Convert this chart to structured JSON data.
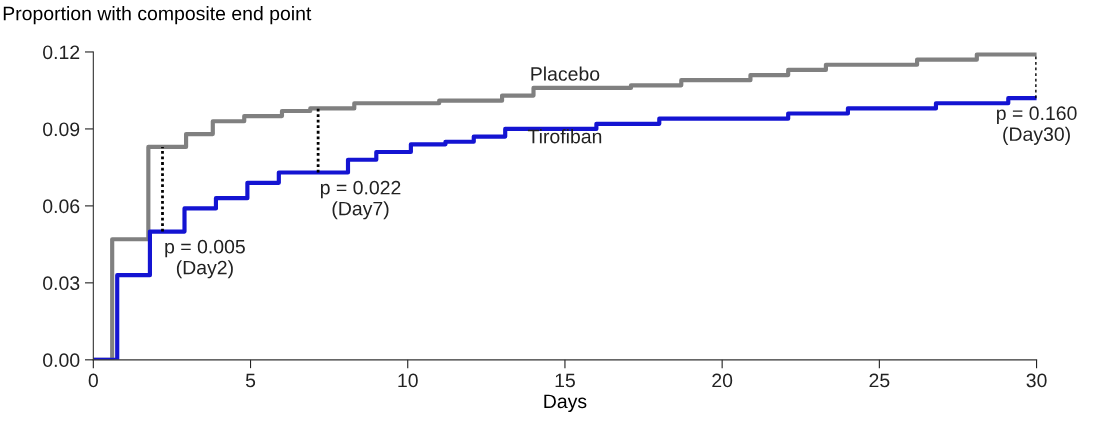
{
  "chart_data": {
    "type": "step",
    "ylabel": "Proportion with composite end point",
    "xlabel": "Days",
    "xlim": [
      0,
      30
    ],
    "xticks": [
      0,
      5,
      10,
      15,
      20,
      25,
      30
    ],
    "ylim": [
      0,
      0.12
    ],
    "yticks": [
      {
        "value": 0,
        "label": "0.00"
      },
      0.03,
      0.06,
      0.09,
      0.12
    ],
    "grid": false,
    "legend": false,
    "series": [
      {
        "name": "Placebo",
        "color": "#808080",
        "x": [
          0,
          0.6,
          1.75,
          2.95,
          3.8,
          4.8,
          6.0,
          6.9,
          8.3,
          11.0,
          13.0,
          14.0,
          17.1,
          18.7,
          20.9,
          22.1,
          23.3,
          26.2,
          28.1,
          30
        ],
        "values": [
          0,
          0.047,
          0.083,
          0.088,
          0.093,
          0.095,
          0.097,
          0.098,
          0.1,
          0.101,
          0.103,
          0.106,
          0.107,
          0.109,
          0.111,
          0.113,
          0.115,
          0.117,
          0.119,
          0.119
        ]
      },
      {
        "name": "Tirofiban",
        "color": "#1414d2",
        "x": [
          0,
          0.76,
          1.8,
          2.9,
          3.9,
          4.9,
          5.9,
          8.1,
          9.0,
          10.1,
          11.2,
          12.1,
          13.1,
          16.0,
          18.0,
          22.1,
          24.0,
          26.8,
          29.1,
          30
        ],
        "values": [
          0,
          0.033,
          0.05,
          0.059,
          0.063,
          0.069,
          0.073,
          0.078,
          0.081,
          0.084,
          0.085,
          0.087,
          0.09,
          0.092,
          0.094,
          0.096,
          0.098,
          0.1,
          0.102,
          0.102
        ]
      }
    ],
    "annotations": [
      {
        "text": "p = 0.005\n(Day2)",
        "x": 2.2,
        "y": 0.05
      },
      {
        "text": "p = 0.022\n(Day7)",
        "x": 7.15,
        "y": 0.073
      },
      {
        "text": "p = 0.160\n(Day30)",
        "x": 30,
        "y": 0.102
      }
    ]
  }
}
